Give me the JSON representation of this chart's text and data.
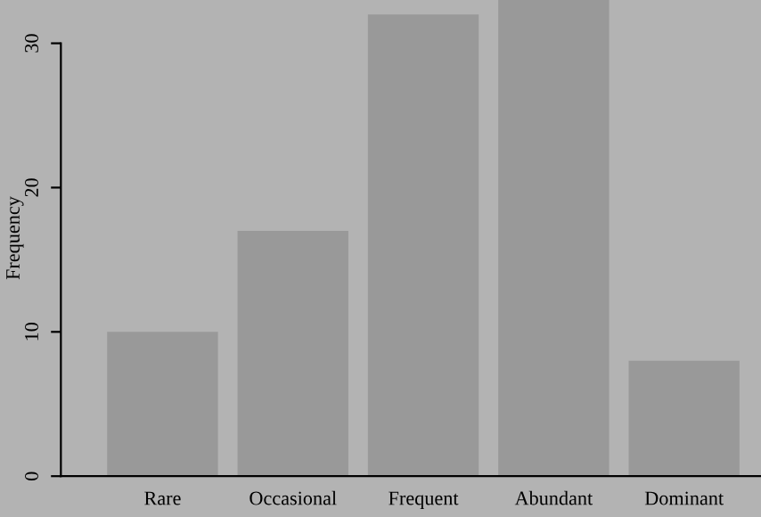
{
  "chart_data": {
    "type": "bar",
    "ylabel": "Frequency",
    "categories": [
      "Rare",
      "Occasional",
      "Frequent",
      "Abundant",
      "Dominant"
    ],
    "values": [
      10,
      17,
      32,
      33,
      8
    ],
    "color": "#999999",
    "ylim": [
      0,
      33
    ],
    "yticks": [
      0,
      10,
      20,
      30
    ],
    "grid": false,
    "legend": false
  }
}
